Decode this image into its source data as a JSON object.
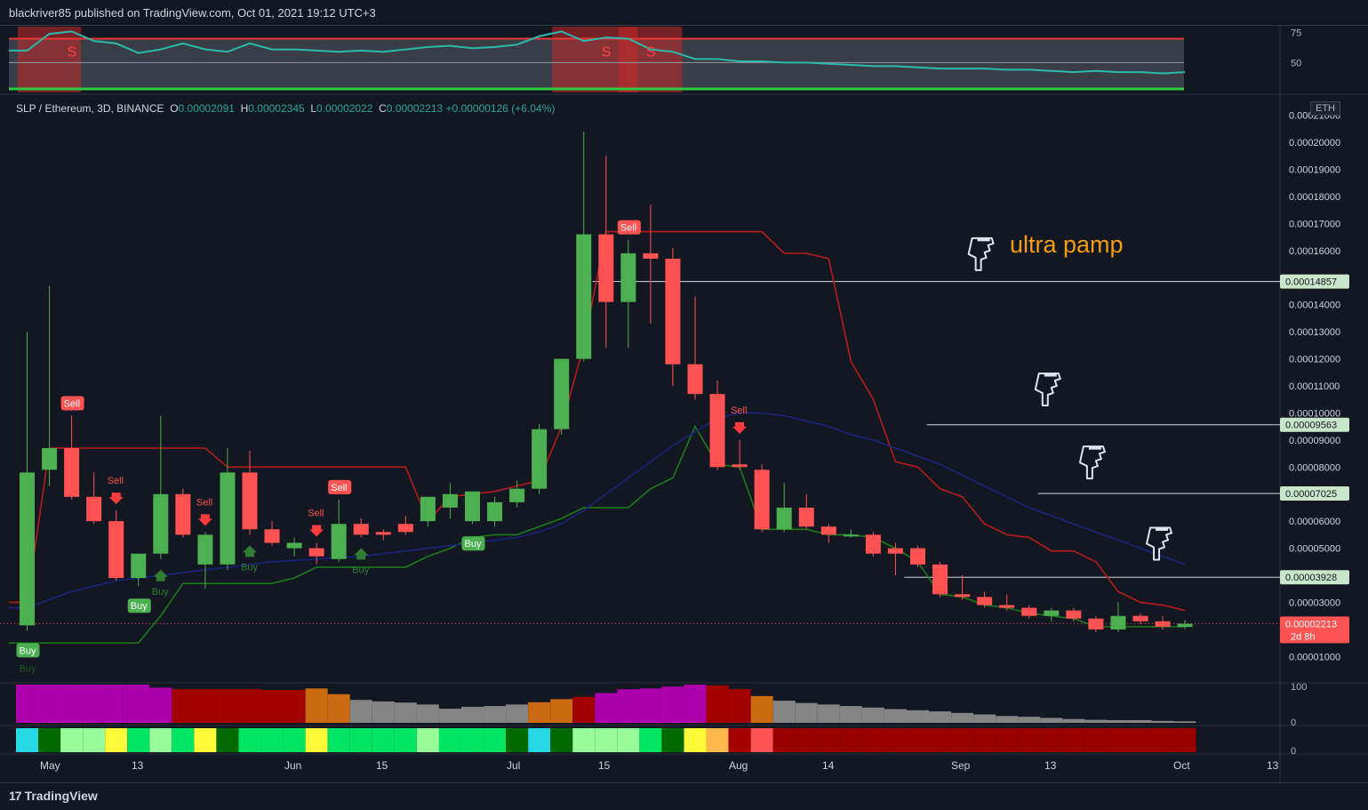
{
  "header": {
    "published": "blackriver85 published on TradingView.com, Oct 01, 2021 19:12 UTC+3"
  },
  "footer": {
    "brand": "TradingView",
    "brand_glyph": "17"
  },
  "symbol": {
    "name": "SLP / Ethereum, 3D, BINANCE",
    "o_label": "O",
    "o": "0.00002091",
    "h_label": "H",
    "h": "0.00002345",
    "l_label": "L",
    "l": "0.00002022",
    "c_label": "C",
    "c": "0.00002213",
    "change": "+0.00000126 (+6.04%)"
  },
  "currency_badge": "ETH",
  "annotation": {
    "text": "ultra pamp",
    "color": "#f59e0b"
  },
  "colors": {
    "up": "#4caf50",
    "down": "#ff5252",
    "sell_line": "#b71c1c",
    "buy_line": "#1b7a1b",
    "ma": "#1a237e",
    "osc": "#2bbbad",
    "bg": "#131722"
  },
  "chart_data": {
    "type": "candlestick",
    "price_axis": {
      "ticks": [
        "0.00021000",
        "0.00020000",
        "0.00019000",
        "0.00018000",
        "0.00017000",
        "0.00016000",
        "0.00015000",
        "0.00014000",
        "0.00013000",
        "0.00012000",
        "0.00011000",
        "0.00010000",
        "0.00009000",
        "0.00008000",
        "0.00007000",
        "0.00006000",
        "0.00005000",
        "0.00004000",
        "0.00003000",
        "0.00002000",
        "0.00001000"
      ],
      "range": [
        6.5e-06,
        0.0002135
      ]
    },
    "time_axis": {
      "labels": [
        "May",
        "13",
        "Jun",
        "15",
        "Jul",
        "15",
        "Aug",
        "14",
        "Sep",
        "13",
        "Oct",
        "13"
      ]
    },
    "candles": [
      {
        "o": 2.15e-05,
        "h": 0.00013,
        "l": 1.95e-05,
        "c": 7.8e-05
      },
      {
        "o": 7.9e-05,
        "h": 0.000147,
        "l": 7.3e-05,
        "c": 8.7e-05
      },
      {
        "o": 8.7e-05,
        "h": 9.9e-05,
        "l": 6.8e-05,
        "c": 6.9e-05
      },
      {
        "o": 6.9e-05,
        "h": 7.8e-05,
        "l": 5.9e-05,
        "c": 6e-05
      },
      {
        "o": 6e-05,
        "h": 6.4e-05,
        "l": 3.8e-05,
        "c": 3.9e-05
      },
      {
        "o": 3.9e-05,
        "h": 4.8e-05,
        "l": 3.6e-05,
        "c": 4.8e-05
      },
      {
        "o": 4.8e-05,
        "h": 9.9e-05,
        "l": 4.6e-05,
        "c": 7e-05
      },
      {
        "o": 7e-05,
        "h": 7.2e-05,
        "l": 5.4e-05,
        "c": 5.5e-05
      },
      {
        "o": 4.4e-05,
        "h": 5.6e-05,
        "l": 3.5e-05,
        "c": 5.5e-05
      },
      {
        "o": 4.4e-05,
        "h": 8.7e-05,
        "l": 4.2e-05,
        "c": 7.8e-05
      },
      {
        "o": 7.8e-05,
        "h": 8.6e-05,
        "l": 5.5e-05,
        "c": 5.7e-05
      },
      {
        "o": 5.7e-05,
        "h": 6e-05,
        "l": 5.1e-05,
        "c": 5.2e-05
      },
      {
        "o": 5e-05,
        "h": 5.4e-05,
        "l": 4.7e-05,
        "c": 5.2e-05
      },
      {
        "o": 5e-05,
        "h": 5.2e-05,
        "l": 4.4e-05,
        "c": 4.7e-05
      },
      {
        "o": 4.6e-05,
        "h": 6.8e-05,
        "l": 4.5e-05,
        "c": 5.9e-05
      },
      {
        "o": 5.9e-05,
        "h": 6.1e-05,
        "l": 5.4e-05,
        "c": 5.5e-05
      },
      {
        "o": 5.6e-05,
        "h": 5.7e-05,
        "l": 5.3e-05,
        "c": 5.5e-05
      },
      {
        "o": 5.9e-05,
        "h": 6.2e-05,
        "l": 5.5e-05,
        "c": 5.6e-05
      },
      {
        "o": 6e-05,
        "h": 6.9e-05,
        "l": 5.8e-05,
        "c": 6.9e-05
      },
      {
        "o": 6.5e-05,
        "h": 7.4e-05,
        "l": 6.1e-05,
        "c": 7e-05
      },
      {
        "o": 6e-05,
        "h": 7.1e-05,
        "l": 5.9e-05,
        "c": 7.1e-05
      },
      {
        "o": 6e-05,
        "h": 6.9e-05,
        "l": 5.8e-05,
        "c": 6.7e-05
      },
      {
        "o": 6.7e-05,
        "h": 7.5e-05,
        "l": 6.5e-05,
        "c": 7.2e-05
      },
      {
        "o": 7.2e-05,
        "h": 9.6e-05,
        "l": 7e-05,
        "c": 9.4e-05
      },
      {
        "o": 9.4e-05,
        "h": 0.000119,
        "l": 9.2e-05,
        "c": 0.00012
      },
      {
        "o": 0.00012,
        "h": 0.000204,
        "l": 0.000119,
        "c": 0.000166
      },
      {
        "o": 0.000166,
        "h": 0.000195,
        "l": 0.000124,
        "c": 0.000141
      },
      {
        "o": 0.000141,
        "h": 0.000164,
        "l": 0.000124,
        "c": 0.000159
      },
      {
        "o": 0.000159,
        "h": 0.000177,
        "l": 0.000133,
        "c": 0.000157
      },
      {
        "o": 0.000157,
        "h": 0.000161,
        "l": 0.00011,
        "c": 0.000118
      },
      {
        "o": 0.000118,
        "h": 0.000143,
        "l": 0.000105,
        "c": 0.000107
      },
      {
        "o": 0.000107,
        "h": 0.000112,
        "l": 7.9e-05,
        "c": 8e-05
      },
      {
        "o": 8.1e-05,
        "h": 9e-05,
        "l": 7.9e-05,
        "c": 8e-05
      },
      {
        "o": 7.9e-05,
        "h": 8.1e-05,
        "l": 5.6e-05,
        "c": 5.7e-05
      },
      {
        "o": 5.7e-05,
        "h": 7.4e-05,
        "l": 5.6e-05,
        "c": 6.5e-05
      },
      {
        "o": 6.5e-05,
        "h": 7e-05,
        "l": 5.7e-05,
        "c": 5.8e-05
      },
      {
        "o": 5.8e-05,
        "h": 5.9e-05,
        "l": 5.2e-05,
        "c": 5.5e-05
      },
      {
        "o": 5.5e-05,
        "h": 5.7e-05,
        "l": 5.4e-05,
        "c": 5.5e-05
      },
      {
        "o": 5.5e-05,
        "h": 5.6e-05,
        "l": 4.7e-05,
        "c": 4.8e-05
      },
      {
        "o": 5e-05,
        "h": 5.2e-05,
        "l": 4e-05,
        "c": 4.8e-05
      },
      {
        "o": 5e-05,
        "h": 5.1e-05,
        "l": 4.3e-05,
        "c": 4.4e-05
      },
      {
        "o": 4.4e-05,
        "h": 4.5e-05,
        "l": 3.2e-05,
        "c": 3.3e-05
      },
      {
        "o": 3.3e-05,
        "h": 4e-05,
        "l": 3.1e-05,
        "c": 3.2e-05
      },
      {
        "o": 3.2e-05,
        "h": 3.4e-05,
        "l": 2.8e-05,
        "c": 2.9e-05
      },
      {
        "o": 2.9e-05,
        "h": 3.3e-05,
        "l": 2.7e-05,
        "c": 2.8e-05
      },
      {
        "o": 2.8e-05,
        "h": 2.9e-05,
        "l": 2.4e-05,
        "c": 2.5e-05
      },
      {
        "o": 2.5e-05,
        "h": 2.8e-05,
        "l": 2.3e-05,
        "c": 2.7e-05
      },
      {
        "o": 2.7e-05,
        "h": 2.8e-05,
        "l": 2.3e-05,
        "c": 2.4e-05
      },
      {
        "o": 2.4e-05,
        "h": 2.5e-05,
        "l": 1.9e-05,
        "c": 2e-05
      },
      {
        "o": 2e-05,
        "h": 3e-05,
        "l": 1.9e-05,
        "c": 2.5e-05
      },
      {
        "o": 2.5e-05,
        "h": 2.6e-05,
        "l": 2.2e-05,
        "c": 2.3e-05
      },
      {
        "o": 2.3e-05,
        "h": 2.5e-05,
        "l": 2e-05,
        "c": 2.1e-05
      },
      {
        "o": 2.09e-05,
        "h": 2.35e-05,
        "l": 2.02e-05,
        "c": 2.21e-05
      }
    ],
    "sell_stop": [
      3e-05,
      8.7e-05,
      8.7e-05,
      8.7e-05,
      8.7e-05,
      8.7e-05,
      8.7e-05,
      8.7e-05,
      8.7e-05,
      8e-05,
      8e-05,
      8e-05,
      8e-05,
      8e-05,
      8e-05,
      8e-05,
      8e-05,
      8e-05,
      6e-05,
      6.9e-05,
      7e-05,
      7.1e-05,
      7.3e-05,
      7.5e-05,
      9.5e-05,
      0.000125,
      0.000167,
      0.000167,
      0.000167,
      0.000167,
      0.000167,
      0.000167,
      0.000167,
      0.000167,
      0.000159,
      0.000159,
      0.000157,
      0.000119,
      0.000105,
      8.2e-05,
      8e-05,
      7.2e-05,
      6.9e-05,
      5.9e-05,
      5.5e-05,
      5.4e-05,
      4.9e-05,
      4.9e-05,
      4.5e-05,
      3.4e-05,
      3e-05,
      2.9e-05,
      2.7e-05
    ],
    "buy_stop": [
      1.5e-05,
      1.5e-05,
      1.5e-05,
      1.5e-05,
      1.5e-05,
      1.5e-05,
      2.5e-05,
      3.7e-05,
      3.7e-05,
      3.7e-05,
      3.7e-05,
      3.7e-05,
      3.9e-05,
      4.3e-05,
      4.3e-05,
      4.3e-05,
      4.3e-05,
      4.3e-05,
      4.7e-05,
      5e-05,
      5.4e-05,
      5.5e-05,
      5.5e-05,
      5.8e-05,
      6.1e-05,
      6.5e-05,
      6.5e-05,
      6.5e-05,
      7.2e-05,
      7.6e-05,
      9.5e-05,
      8.1e-05,
      8e-05,
      5.7e-05,
      5.7e-05,
      5.7e-05,
      5.5e-05,
      5.5e-05,
      5.4e-05,
      5e-05,
      4.5e-05,
      3.3e-05,
      3.2e-05,
      2.9e-05,
      2.8e-05,
      2.6e-05,
      2.5e-05,
      2.4e-05,
      2.1e-05,
      2.1e-05,
      2.1e-05,
      2.1e-05,
      2.1e-05
    ],
    "ma": [
      2.8e-05,
      3.1e-05,
      3.4e-05,
      3.6e-05,
      3.8e-05,
      3.9e-05,
      4e-05,
      4.1e-05,
      4.2e-05,
      4.3e-05,
      4.4e-05,
      4.5e-05,
      4.55e-05,
      4.6e-05,
      4.65e-05,
      4.7e-05,
      4.8e-05,
      4.9e-05,
      5e-05,
      5.1e-05,
      5.2e-05,
      5.3e-05,
      5.4e-05,
      5.6e-05,
      5.9e-05,
      6.4e-05,
      7e-05,
      7.6e-05,
      8.2e-05,
      8.8e-05,
      9.3e-05,
      9.8e-05,
      0.0001,
      0.0001,
      9.9e-05,
      9.7e-05,
      9.5e-05,
      9.2e-05,
      9e-05,
      8.7e-05,
      8.4e-05,
      8.1e-05,
      7.7e-05,
      7.3e-05,
      6.9e-05,
      6.5e-05,
      6.2e-05,
      5.9e-05,
      5.6e-05,
      5.3e-05,
      5e-05,
      4.7e-05,
      4.4e-05
    ],
    "signals": [
      {
        "i": 0,
        "type": "Buy",
        "label": "Buy",
        "faint": "Buy"
      },
      {
        "i": 2,
        "type": "Sell",
        "label": "Sell"
      },
      {
        "i": 4,
        "type": "SellArrow",
        "label": "Sell"
      },
      {
        "i": 5,
        "type": "Buy",
        "label": "Buy"
      },
      {
        "i": 6,
        "type": "BuyArrow",
        "label": "Buy"
      },
      {
        "i": 8,
        "type": "SellArrow",
        "label": "Sell"
      },
      {
        "i": 10,
        "type": "BuyArrow",
        "label": "Buy"
      },
      {
        "i": 13,
        "type": "SellArrow",
        "label": "Sell"
      },
      {
        "i": 14,
        "type": "Sell",
        "label": "Sell"
      },
      {
        "i": 15,
        "type": "BuyArrow",
        "label": "Buy"
      },
      {
        "i": 20,
        "type": "Buy",
        "label": "Buy"
      },
      {
        "i": 27,
        "type": "Sell",
        "label": "Sell"
      },
      {
        "i": 32,
        "type": "SellArrow",
        "label": "Sell"
      }
    ],
    "horizontal_lines": [
      {
        "value": 0.00014857,
        "label": "0.00014857",
        "x_from_bar": 26
      },
      {
        "value": 9.563e-05,
        "label": "0.00009563",
        "x_from_bar": 41
      },
      {
        "value": 7.025e-05,
        "label": "0.00007025",
        "x_from_bar": 46
      },
      {
        "value": 3.928e-05,
        "label": "0.00003928",
        "x_from_bar": 40
      }
    ],
    "last_price": {
      "value": 2.213e-05,
      "label": "0.00002213",
      "countdown": "2d 8h"
    },
    "pointer_marks": [
      {
        "bar": 43,
        "value": 0.00016
      },
      {
        "bar": 46,
        "value": 0.00011
      },
      {
        "bar": 48,
        "value": 8.3e-05
      },
      {
        "bar": 51,
        "value": 5.3e-05
      }
    ],
    "oscillator": {
      "axis_ticks": [
        "75",
        "50"
      ],
      "range": [
        25,
        80
      ],
      "upper": 70,
      "lower": 28,
      "values": [
        60,
        74,
        76,
        68,
        66,
        58,
        61,
        66,
        61,
        59,
        66,
        61,
        61,
        60,
        59,
        60,
        59,
        61,
        63,
        64,
        62,
        63,
        65,
        72,
        76,
        68,
        71,
        70,
        61,
        59,
        53,
        53,
        51,
        51,
        50,
        50,
        49,
        48,
        47,
        47,
        46,
        45,
        45,
        45,
        44,
        44,
        43,
        42,
        43,
        42,
        42,
        41,
        42
      ],
      "sell_zones": [
        [
          0,
          2
        ],
        [
          24,
          27
        ],
        [
          27,
          29
        ]
      ],
      "s_marks": [
        2,
        26,
        28
      ]
    },
    "volume": {
      "axis_ticks": [
        "100",
        "0"
      ],
      "values": [
        100,
        100,
        100,
        100,
        100,
        100,
        92,
        88,
        88,
        88,
        88,
        86,
        86,
        90,
        75,
        60,
        56,
        53,
        48,
        37,
        42,
        44,
        48,
        54,
        62,
        68,
        78,
        88,
        90,
        95,
        100,
        98,
        88,
        70,
        58,
        52,
        48,
        44,
        40,
        36,
        33,
        30,
        26,
        22,
        18,
        16,
        13,
        10,
        8,
        7,
        7,
        5,
        4
      ],
      "colors": [
        "#ab00ab",
        "#ab00ab",
        "#ab00ab",
        "#ab00ab",
        "#ab00ab",
        "#ab00ab",
        "#ab00ab",
        "#a30000",
        "#a30000",
        "#a30000",
        "#a30000",
        "#a30000",
        "#a30000",
        "#cc6a12",
        "#cc6a12",
        "#858585",
        "#858585",
        "#858585",
        "#858585",
        "#858585",
        "#858585",
        "#858585",
        "#858585",
        "#cc6a12",
        "#cc6a12",
        "#a30000",
        "#ab00ab",
        "#ab00ab",
        "#ab00ab",
        "#ab00ab",
        "#ab00ab",
        "#a30000",
        "#a30000",
        "#cc6a12",
        "#858585",
        "#858585",
        "#858585",
        "#858585",
        "#858585",
        "#858585",
        "#858585",
        "#858585",
        "#858585",
        "#858585",
        "#858585",
        "#858585",
        "#858585",
        "#858585",
        "#858585",
        "#858585",
        "#858585",
        "#858585",
        "#858585"
      ]
    },
    "heat_strip": {
      "colors": [
        "#26d7e5",
        "#006a00",
        "#98fc98",
        "#98fc98",
        "#fffa3a",
        "#00e664",
        "#98fc98",
        "#00e664",
        "#fffa3a",
        "#006a00",
        "#00e664",
        "#00e664",
        "#00e664",
        "#fffa3a",
        "#00e664",
        "#00e664",
        "#00e664",
        "#00e664",
        "#98fc98",
        "#00e664",
        "#00e664",
        "#00e664",
        "#006a00",
        "#26d7e5",
        "#006a00",
        "#98fc98",
        "#98fc98",
        "#98fc98",
        "#00e664",
        "#006a00",
        "#fffa3a",
        "#ffb84d",
        "#a30000",
        "#ff5252",
        "#990000",
        "#990000",
        "#990000",
        "#990000",
        "#990000",
        "#990000",
        "#990000",
        "#990000",
        "#990000",
        "#990000",
        "#990000",
        "#990000",
        "#990000",
        "#990000",
        "#990000",
        "#990000",
        "#990000",
        "#990000",
        "#990000"
      ]
    }
  }
}
